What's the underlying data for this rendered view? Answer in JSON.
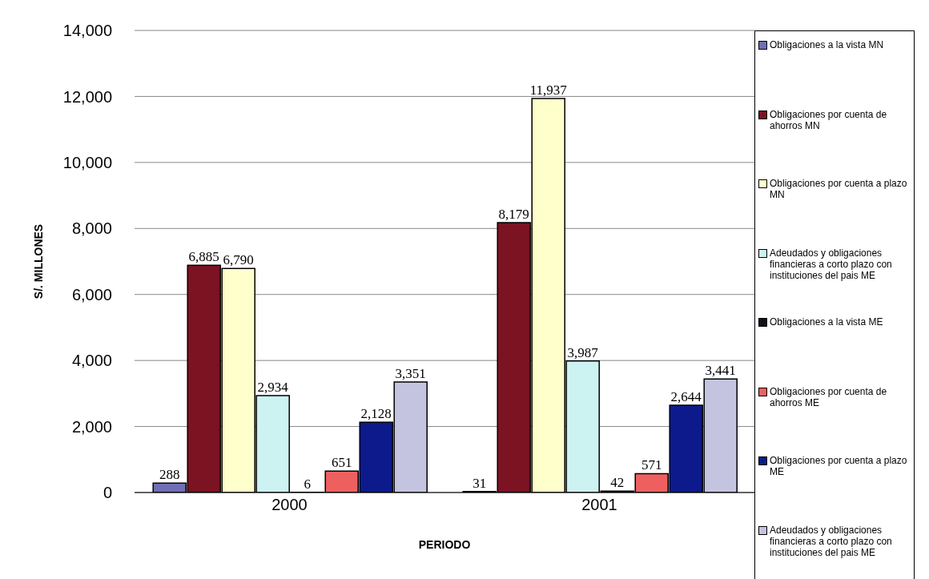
{
  "chart_data": {
    "type": "bar",
    "xlabel": "PERIODO",
    "ylabel": "S/. MILLONES",
    "categories": [
      "2000",
      "2001"
    ],
    "series": [
      {
        "name": "Obligaciones a la vista MN",
        "color": "#6f6fb5",
        "values": [
          288,
          31
        ],
        "value_labels": [
          "288",
          "31"
        ]
      },
      {
        "name": "Obligaciones por cuenta de ahorros MN",
        "color": "#7b1322",
        "values": [
          6885,
          8179
        ],
        "value_labels": [
          "6,885",
          "8,179"
        ]
      },
      {
        "name": "Obligaciones por cuenta a plazo MN",
        "color": "#ffffcc",
        "values": [
          6790,
          11937
        ],
        "value_labels": [
          "6,790",
          "11,937"
        ]
      },
      {
        "name": "Adeudados y obligaciones financieras a corto plazo con instituciones del pais ME",
        "color": "#ccf2f2",
        "values": [
          2934,
          3987
        ],
        "value_labels": [
          "2,934",
          "3,987"
        ]
      },
      {
        "name": "Obligaciones a la vista ME",
        "color": "#10101a",
        "values": [
          6,
          42
        ],
        "value_labels": [
          "6",
          "42"
        ]
      },
      {
        "name": "Obligaciones por cuenta de ahorros ME",
        "color": "#ee6060",
        "values": [
          651,
          571
        ],
        "value_labels": [
          "651",
          "571"
        ]
      },
      {
        "name": "Obligaciones por cuenta a plazo ME",
        "color": "#0c1a8c",
        "values": [
          2128,
          2644
        ],
        "value_labels": [
          "2,128",
          "2,644"
        ]
      },
      {
        "name": "Adeudados y obligaciones financieras a corto plazo con instituciones del pais ME",
        "color": "#c4c4e0",
        "values": [
          3351,
          3441
        ],
        "value_labels": [
          "3,351",
          "3,441"
        ]
      }
    ],
    "ylim": [
      0,
      14000
    ],
    "yticks": [
      0,
      {
        "value": 2000,
        "label": "2,000"
      },
      {
        "value": 4000,
        "label": "4,000"
      },
      {
        "value": 6000,
        "label": "6,000"
      },
      {
        "value": 8000,
        "label": "8,000"
      },
      {
        "value": 10000,
        "label": "10,000"
      },
      {
        "value": 12000,
        "label": "12,000"
      },
      {
        "value": 14000,
        "label": "14,000"
      }
    ],
    "grid": "y",
    "legend": "right"
  }
}
